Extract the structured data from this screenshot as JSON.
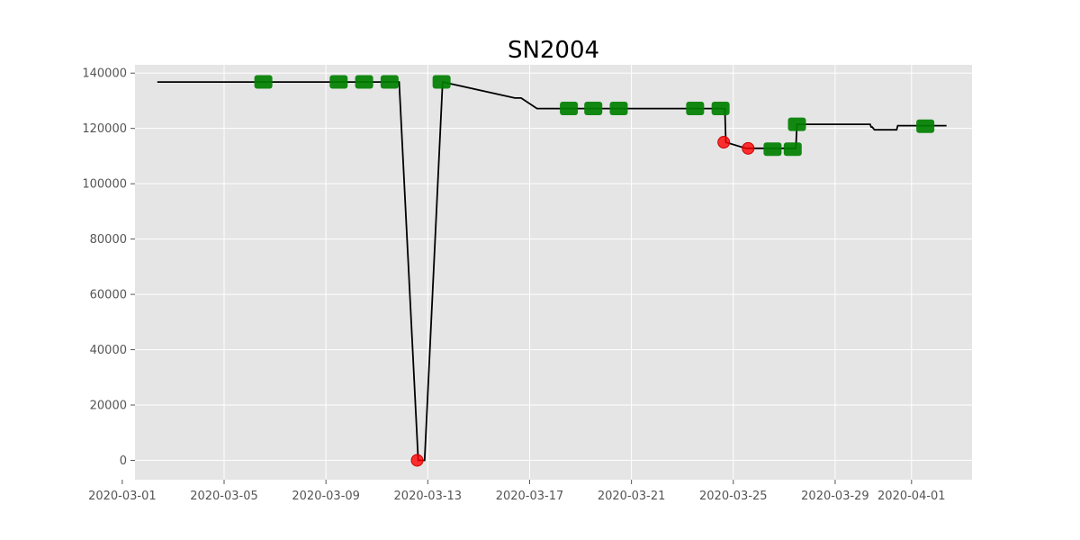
{
  "chart_data": {
    "type": "line",
    "title": "SN2004",
    "xlabel": "",
    "ylabel": "",
    "grid": true,
    "legend": "none",
    "xlim": [
      "2020-03-01T12:00",
      "2020-04-03T09:00"
    ],
    "ylim": [
      -7000,
      143000
    ],
    "x_ticks": [
      "2020-03-01",
      "2020-03-05",
      "2020-03-09",
      "2020-03-13",
      "2020-03-17",
      "2020-03-21",
      "2020-03-25",
      "2020-03-29",
      "2020-04-01"
    ],
    "y_ticks": [
      0,
      20000,
      40000,
      60000,
      80000,
      100000,
      120000,
      140000
    ],
    "colors": {
      "background": "#e5e5e5",
      "grid": "#ffffff",
      "line": "#000000",
      "square_marker": "#008000",
      "circle_marker": "#ff0000"
    },
    "series": [
      {
        "style": "line",
        "x": [
          "2020-03-02T09:00",
          "2020-03-11T21:00",
          "2020-03-12T15:00",
          "2020-03-12T21:00",
          "2020-03-13T14:00",
          "2020-03-16T10:00",
          "2020-03-16T16:00",
          "2020-03-17T07:00",
          "2020-03-24T16:00",
          "2020-03-24T17:00",
          "2020-03-25T12:00",
          "2020-03-27T11:00",
          "2020-03-27T12:00",
          "2020-03-30T09:00",
          "2020-03-30T10:00",
          "2020-03-30T11:00",
          "2020-03-30T13:00",
          "2020-03-31T10:00",
          "2020-03-31T11:00",
          "2020-04-02T09:00"
        ],
        "y": [
          136800,
          136800,
          0,
          0,
          136800,
          131000,
          131000,
          127200,
          127200,
          115000,
          112800,
          112800,
          121500,
          121500,
          120500,
          120500,
          119500,
          119500,
          121000,
          121000
        ]
      },
      {
        "style": "square_markers",
        "x": [
          "2020-03-06T13:00",
          "2020-03-09T12:00",
          "2020-03-10T12:00",
          "2020-03-11T12:00",
          "2020-03-13T13:00",
          "2020-03-18T13:00",
          "2020-03-19T12:00",
          "2020-03-20T12:00",
          "2020-03-23T12:00",
          "2020-03-24T12:00",
          "2020-03-26T13:00",
          "2020-03-27T08:00",
          "2020-03-27T12:00",
          "2020-04-01T13:00"
        ],
        "y": [
          136800,
          136800,
          136800,
          136800,
          136800,
          127200,
          127200,
          127200,
          127200,
          127200,
          112500,
          112500,
          121500,
          120800
        ]
      },
      {
        "style": "circle_markers",
        "x": [
          "2020-03-12T14:00",
          "2020-03-24T15:00",
          "2020-03-25T14:00"
        ],
        "y": [
          0,
          115000,
          112800
        ]
      }
    ]
  }
}
